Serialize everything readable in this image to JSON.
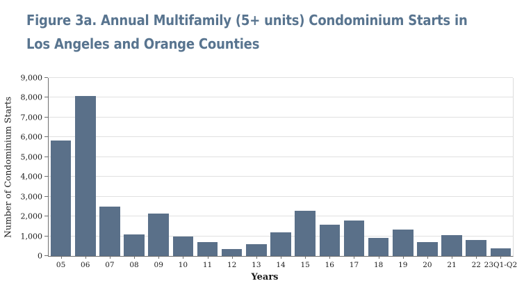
{
  "header": {
    "title_line1": "Figure 3a. Annual Multifamily (5+ units) Condominium Starts in",
    "title_line2": "Los Angeles and Orange Counties"
  },
  "chart_data": {
    "type": "bar",
    "title": "Figure 3a. Annual Multifamily (5+ units) Condominium Starts in Los Angeles and Orange Counties",
    "categories": [
      "05",
      "06",
      "07",
      "08",
      "09",
      "10",
      "11",
      "12",
      "13",
      "14",
      "15",
      "16",
      "17",
      "18",
      "19",
      "20",
      "21",
      "22",
      "23Q1-Q2"
    ],
    "values": [
      5850,
      8100,
      2500,
      1100,
      2150,
      1000,
      700,
      350,
      600,
      1200,
      2300,
      1580,
      1800,
      900,
      1350,
      700,
      1050,
      800,
      380
    ],
    "xlabel": "Years",
    "ylabel": "Number of Condominium Starts",
    "ylim": [
      0,
      9000
    ],
    "ytick_step": 1000,
    "ytick_labels": [
      "0",
      "1,000",
      "2,000",
      "3,000",
      "4,000",
      "5,000",
      "6,000",
      "7,000",
      "8,000",
      "9,000"
    ],
    "grid": true,
    "legend_position": "none"
  },
  "colors": {
    "title": "#58748f",
    "bar": "#5a7089",
    "grid": "#e0e0e0",
    "axis": "#6e6e6e",
    "text": "#1a1a1a",
    "background": "#ffffff"
  }
}
